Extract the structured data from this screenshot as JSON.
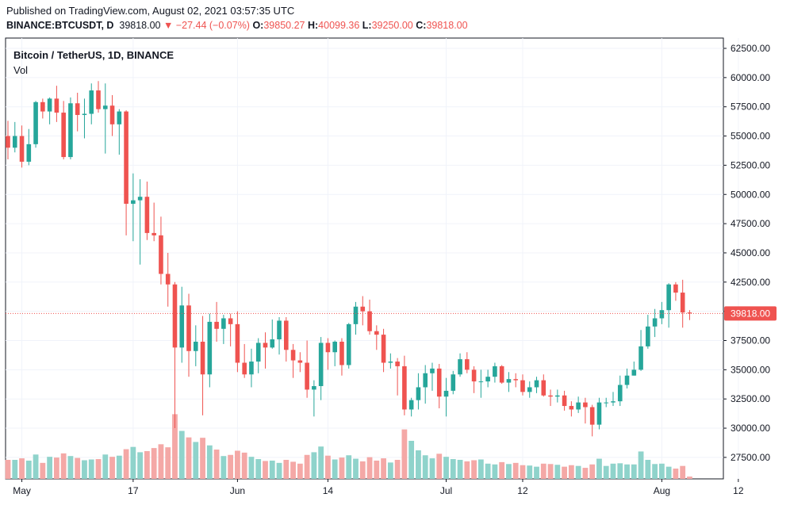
{
  "header": {
    "published": "Published on TradingView.com, August 02, 2021 03:57:35 UTC",
    "symbol": "BINANCE:BTCUSDT, D",
    "last": "39818.00",
    "change": "▼ −27.44 (−0.07%)",
    "o_label": "O:",
    "o_value": "39850.27",
    "h_label": "H:",
    "h_value": "40099.36",
    "l_label": "L:",
    "l_value": "39250.00",
    "c_label": "C:",
    "c_value": "39818.00"
  },
  "legend": {
    "title": "Bitcoin / TetherUS, 1D, BINANCE",
    "volume_label": "Vol"
  },
  "price_tag": "39818.00",
  "colors": {
    "up": "#26a69a",
    "down": "#ef5350",
    "up_volume": "#8fd3cb",
    "down_volume": "#f4a8a6",
    "grid": "#f0f3fa",
    "axis": "#131722",
    "price_line": "#ef5350"
  },
  "chart_data": {
    "type": "candlestick",
    "y_axis_ticks": [
      "62500.00",
      "60000.00",
      "57500.00",
      "55000.00",
      "52500.00",
      "50000.00",
      "47500.00",
      "45000.00",
      "42500.00",
      "40000.00",
      "37500.00",
      "35000.00",
      "32500.00",
      "30000.00",
      "27500.00"
    ],
    "x_axis_ticks": [
      {
        "label": "May",
        "index": 2
      },
      {
        "label": "17",
        "index": 18
      },
      {
        "label": "Jun",
        "index": 33
      },
      {
        "label": "14",
        "index": 46
      },
      {
        "label": "Jul",
        "index": 63
      },
      {
        "label": "12",
        "index": 74
      },
      {
        "label": "Aug",
        "index": 94
      },
      {
        "label": "12",
        "index": 105
      }
    ],
    "ylim": [
      25800,
      63700
    ],
    "candles": [
      [
        55000,
        56300,
        53000,
        54000,
        5.0
      ],
      [
        54000,
        56200,
        53600,
        55000,
        5.0
      ],
      [
        55000,
        55900,
        52300,
        52800,
        5.4
      ],
      [
        52800,
        55600,
        52500,
        54300,
        4.8
      ],
      [
        54300,
        58000,
        54000,
        57900,
        6.4
      ],
      [
        57900,
        58200,
        56500,
        57100,
        4.2
      ],
      [
        57100,
        58300,
        56000,
        58200,
        5.8
      ],
      [
        58200,
        59300,
        56200,
        57000,
        5.6
      ],
      [
        57000,
        58000,
        53000,
        53200,
        6.7
      ],
      [
        53200,
        58300,
        53000,
        57800,
        6.0
      ],
      [
        57800,
        58700,
        55400,
        56800,
        5.5
      ],
      [
        56800,
        58200,
        54800,
        56900,
        4.9
      ],
      [
        56900,
        59500,
        56000,
        58900,
        5.1
      ],
      [
        58900,
        59700,
        57000,
        57300,
        5.2
      ],
      [
        57300,
        59500,
        53500,
        57600,
        6.4
      ],
      [
        57600,
        58500,
        55000,
        56000,
        5.8
      ],
      [
        56000,
        57300,
        53400,
        57100,
        6.1
      ],
      [
        57100,
        57200,
        46500,
        49200,
        7.8
      ],
      [
        49200,
        51800,
        46000,
        49500,
        8.4
      ],
      [
        49500,
        51300,
        44000,
        49800,
        7.0
      ],
      [
        49800,
        51100,
        46100,
        46700,
        7.3
      ],
      [
        46700,
        49300,
        46000,
        46500,
        8.1
      ],
      [
        46500,
        48100,
        42300,
        43200,
        9.1
      ],
      [
        43200,
        45000,
        40400,
        42300,
        8.3
      ],
      [
        42300,
        42500,
        30000,
        36900,
        17.0
      ],
      [
        36900,
        42100,
        35600,
        40500,
        12.6
      ],
      [
        40500,
        41500,
        34400,
        36600,
        10.9
      ],
      [
        36600,
        38800,
        35300,
        37400,
        9.7
      ],
      [
        37400,
        39600,
        31100,
        34600,
        10.8
      ],
      [
        34600,
        39800,
        33500,
        39100,
        8.8
      ],
      [
        39100,
        40800,
        37400,
        38500,
        7.7
      ],
      [
        38500,
        39700,
        37200,
        39400,
        6.0
      ],
      [
        39400,
        39800,
        37000,
        38900,
        6.3
      ],
      [
        38900,
        40000,
        34800,
        35600,
        7.4
      ],
      [
        35600,
        37200,
        34300,
        34600,
        6.9
      ],
      [
        34600,
        36800,
        33500,
        35700,
        5.8
      ],
      [
        35700,
        37700,
        34700,
        37300,
        5.2
      ],
      [
        37300,
        38200,
        35100,
        36900,
        4.7
      ],
      [
        36900,
        39300,
        36800,
        37600,
        4.8
      ],
      [
        37600,
        39500,
        36300,
        39200,
        4.2
      ],
      [
        39200,
        39500,
        35700,
        36700,
        5.0
      ],
      [
        36700,
        37200,
        34300,
        35800,
        4.5
      ],
      [
        35800,
        36500,
        34800,
        35600,
        4.0
      ],
      [
        35600,
        37500,
        32600,
        33300,
        6.3
      ],
      [
        33300,
        34100,
        31000,
        33600,
        7.0
      ],
      [
        33600,
        37800,
        32400,
        37300,
        8.5
      ],
      [
        37300,
        37700,
        35000,
        36500,
        6.1
      ],
      [
        36500,
        37500,
        35300,
        37400,
        5.1
      ],
      [
        37400,
        37700,
        34500,
        35400,
        5.6
      ],
      [
        35400,
        39000,
        35100,
        38900,
        6.2
      ],
      [
        38900,
        40800,
        38000,
        40400,
        5.3
      ],
      [
        40400,
        41300,
        38800,
        40000,
        4.6
      ],
      [
        40000,
        41000,
        38000,
        38300,
        5.7
      ],
      [
        38300,
        38800,
        36700,
        38000,
        4.8
      ],
      [
        38000,
        38500,
        34800,
        35600,
        5.4
      ],
      [
        35600,
        36400,
        35100,
        35700,
        4.3
      ],
      [
        35700,
        36000,
        32800,
        35300,
        5.0
      ],
      [
        35300,
        36200,
        31100,
        31600,
        13.0
      ],
      [
        31600,
        32600,
        31000,
        32400,
        10.0
      ],
      [
        32400,
        34700,
        31600,
        33500,
        7.5
      ],
      [
        33500,
        35400,
        32100,
        34700,
        6.2
      ],
      [
        34700,
        35600,
        33200,
        35100,
        5.4
      ],
      [
        35100,
        35500,
        31700,
        32700,
        6.6
      ],
      [
        32700,
        34300,
        31000,
        33200,
        5.8
      ],
      [
        33200,
        34900,
        32900,
        34600,
        5.2
      ],
      [
        34600,
        36400,
        34400,
        35900,
        5.0
      ],
      [
        35900,
        36500,
        34700,
        35000,
        4.6
      ],
      [
        35000,
        35300,
        33000,
        34000,
        4.9
      ],
      [
        34000,
        35000,
        32600,
        34000,
        5.1
      ],
      [
        34000,
        35000,
        33500,
        34400,
        4.0
      ],
      [
        34400,
        35600,
        33900,
        35300,
        3.8
      ],
      [
        35300,
        35400,
        33800,
        33900,
        4.4
      ],
      [
        33900,
        34800,
        33100,
        34200,
        3.9
      ],
      [
        34200,
        34700,
        33500,
        34100,
        4.2
      ],
      [
        34100,
        34600,
        32800,
        33100,
        3.6
      ],
      [
        33100,
        34000,
        32600,
        33500,
        3.5
      ],
      [
        33500,
        34400,
        33000,
        34100,
        3.2
      ],
      [
        34100,
        34600,
        32700,
        32800,
        4.0
      ],
      [
        32800,
        33300,
        31900,
        32700,
        3.9
      ],
      [
        32700,
        33300,
        32200,
        32800,
        3.7
      ],
      [
        32800,
        33200,
        31500,
        31900,
        3.2
      ],
      [
        31900,
        32300,
        31000,
        31600,
        3.6
      ],
      [
        31600,
        32700,
        31300,
        32200,
        3.4
      ],
      [
        32200,
        32600,
        30400,
        31800,
        2.9
      ],
      [
        31800,
        32000,
        29300,
        30300,
        3.8
      ],
      [
        30300,
        32600,
        29900,
        32200,
        5.3
      ],
      [
        32200,
        32600,
        31800,
        32200,
        3.4
      ],
      [
        32200,
        33100,
        31900,
        32300,
        4.0
      ],
      [
        32300,
        34500,
        31900,
        33700,
        4.1
      ],
      [
        33700,
        35100,
        33400,
        34500,
        3.8
      ],
      [
        34500,
        35700,
        34500,
        35000,
        3.8
      ],
      [
        35000,
        38400,
        34900,
        37000,
        7.2
      ],
      [
        37000,
        39700,
        36800,
        38700,
        5.0
      ],
      [
        38700,
        40200,
        37800,
        39400,
        3.9
      ],
      [
        39400,
        40800,
        38900,
        40100,
        4.0
      ],
      [
        40100,
        42400,
        38600,
        42300,
        3.2
      ],
      [
        42300,
        42500,
        40900,
        41600,
        2.7
      ],
      [
        41600,
        42700,
        38600,
        39900,
        3.4
      ],
      [
        39900,
        40100,
        39250,
        39818,
        0.6
      ]
    ]
  }
}
